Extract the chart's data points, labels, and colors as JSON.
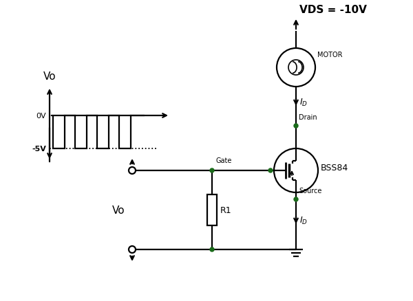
{
  "bg_color": "#ffffff",
  "line_color": "#000000",
  "dot_color": "#1a6b1a",
  "vds_label": "VDS = -10V",
  "bss84_label": "BSS84",
  "motor_label": "MOTOR",
  "vo_label": "Vo",
  "r1_label": "R1",
  "drain_label": "Drain",
  "source_label": "Source",
  "gate_label": "Gate",
  "ov_label": "0V",
  "neg5v_label": "-5V",
  "figsize": [
    6.0,
    4.39
  ],
  "dpi": 100,
  "lw": 1.6
}
